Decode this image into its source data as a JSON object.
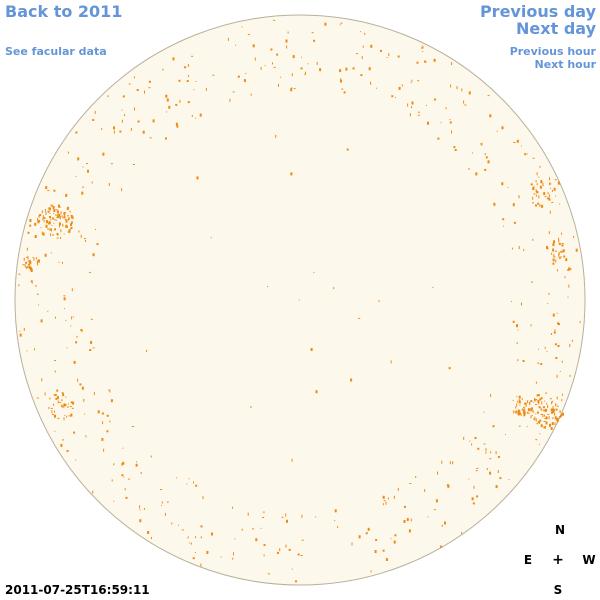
{
  "nav": {
    "back": "Back to 2011",
    "facular": "See facular data",
    "previous_day": "Previous day",
    "next_day": "Next day",
    "previous_hour": "Previous hour",
    "next_hour": "Next hour"
  },
  "compass": {
    "north": "N",
    "east": "E",
    "center": "+",
    "west": "W",
    "south": "S"
  },
  "timestamp": "2011-07-25T16:59:11",
  "colors": {
    "disk_fill": "#fdf8ec",
    "disk_edge": "#b9b09a",
    "plage": "#ee8a12",
    "link": "#6495d8"
  }
}
